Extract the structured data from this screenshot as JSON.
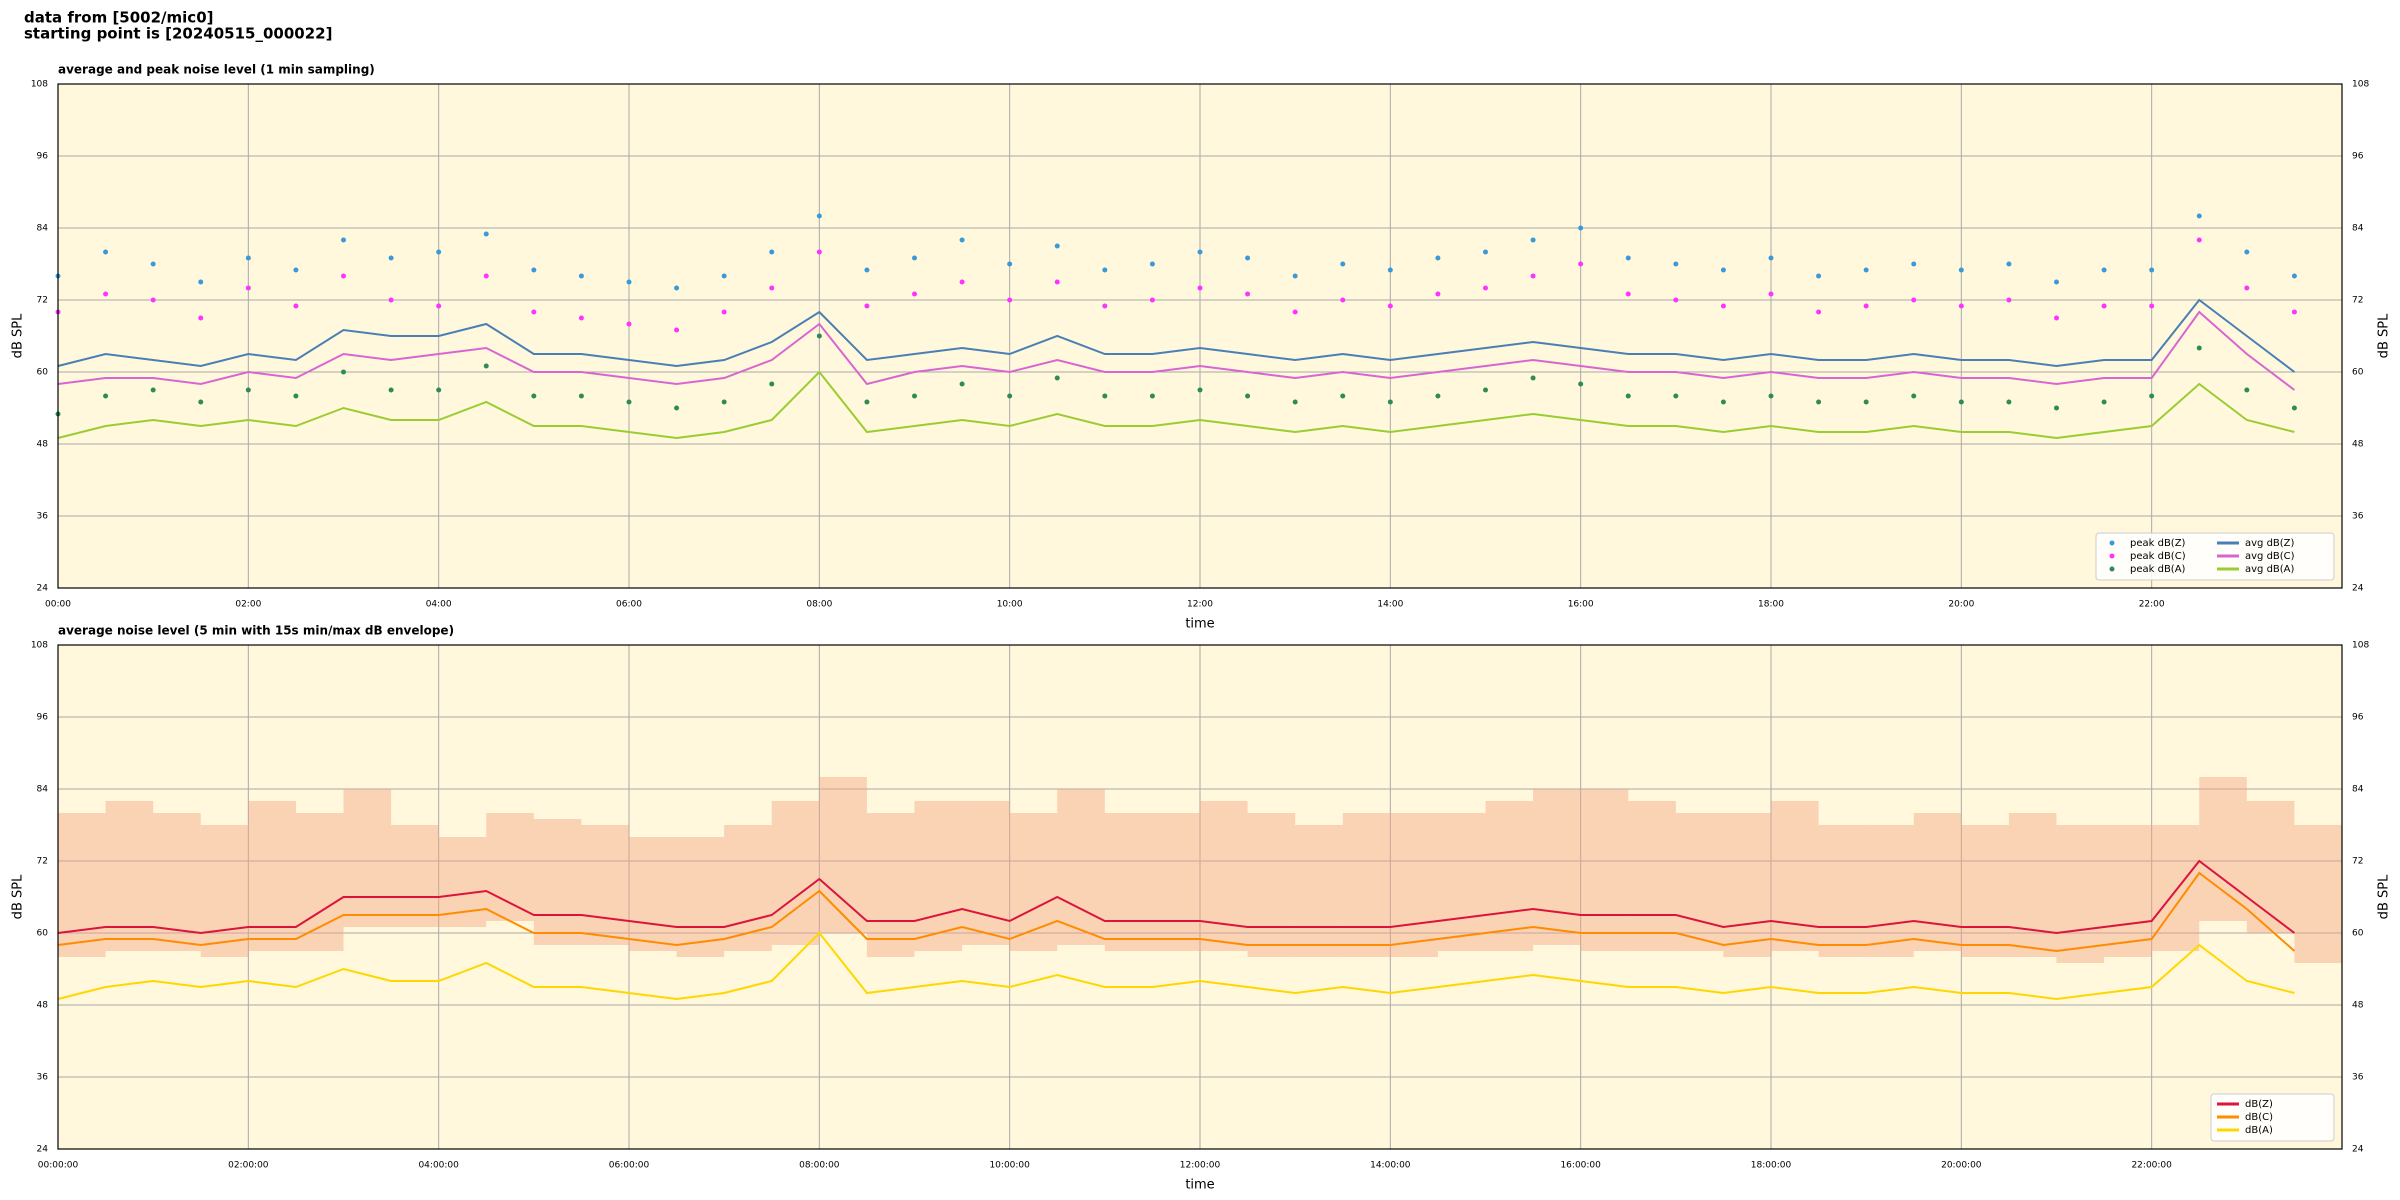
{
  "header_lines": [
    "data from [5002/mic0]",
    "starting point is [20240515_000022]"
  ],
  "chart_data": [
    {
      "type": "line",
      "title": "average and peak noise level (1 min sampling)",
      "xlabel": "time",
      "ylabel": "dB SPL",
      "xlim": [
        0,
        1440
      ],
      "ylim": [
        24,
        108
      ],
      "xticks": [
        {
          "value": 0,
          "label": "00:00"
        },
        {
          "value": 120,
          "label": "02:00"
        },
        {
          "value": 240,
          "label": "04:00"
        },
        {
          "value": 360,
          "label": "06:00"
        },
        {
          "value": 480,
          "label": "08:00"
        },
        {
          "value": 600,
          "label": "10:00"
        },
        {
          "value": 720,
          "label": "12:00"
        },
        {
          "value": 840,
          "label": "14:00"
        },
        {
          "value": 960,
          "label": "16:00"
        },
        {
          "value": 1080,
          "label": "18:00"
        },
        {
          "value": 1200,
          "label": "20:00"
        },
        {
          "value": 1320,
          "label": "22:00"
        }
      ],
      "yticks": [
        24,
        36,
        48,
        60,
        72,
        84,
        96,
        108
      ],
      "grid": true,
      "background": "#fff8dc",
      "legend": "lower right",
      "legend_columns": 2,
      "x": [
        0,
        30,
        60,
        90,
        120,
        150,
        180,
        210,
        240,
        270,
        300,
        330,
        360,
        390,
        420,
        450,
        480,
        510,
        540,
        570,
        600,
        630,
        660,
        690,
        720,
        750,
        780,
        810,
        840,
        870,
        900,
        930,
        960,
        990,
        1020,
        1050,
        1080,
        1110,
        1140,
        1170,
        1200,
        1230,
        1260,
        1290,
        1320,
        1350,
        1380,
        1410
      ],
      "series": [
        {
          "name": "peak dB(Z)",
          "mark": "dot",
          "color": "#3a9ad9",
          "values": [
            76,
            80,
            78,
            75,
            79,
            77,
            82,
            79,
            80,
            83,
            77,
            76,
            75,
            74,
            76,
            80,
            86,
            77,
            79,
            82,
            78,
            81,
            77,
            78,
            80,
            79,
            76,
            78,
            77,
            79,
            80,
            82,
            84,
            79,
            78,
            77,
            79,
            76,
            77,
            78,
            77,
            78,
            75,
            77,
            77,
            86,
            80,
            76
          ]
        },
        {
          "name": "peak dB(C)",
          "mark": "dot",
          "color": "#ff33ff",
          "values": [
            70,
            73,
            72,
            69,
            74,
            71,
            76,
            72,
            71,
            76,
            70,
            69,
            68,
            67,
            70,
            74,
            80,
            71,
            73,
            75,
            72,
            75,
            71,
            72,
            74,
            73,
            70,
            72,
            71,
            73,
            74,
            76,
            78,
            73,
            72,
            71,
            73,
            70,
            71,
            72,
            71,
            72,
            69,
            71,
            71,
            82,
            74,
            70
          ]
        },
        {
          "name": "peak dB(A)",
          "mark": "dot",
          "color": "#2e8b57",
          "values": [
            53,
            56,
            57,
            55,
            57,
            56,
            60,
            57,
            57,
            61,
            56,
            56,
            55,
            54,
            55,
            58,
            66,
            55,
            56,
            58,
            56,
            59,
            56,
            56,
            57,
            56,
            55,
            56,
            55,
            56,
            57,
            59,
            58,
            56,
            56,
            55,
            56,
            55,
            55,
            56,
            55,
            55,
            54,
            55,
            56,
            64,
            57,
            54
          ]
        },
        {
          "name": "avg dB(Z)",
          "mark": "line",
          "color": "#4a7fb5",
          "values": [
            61,
            63,
            62,
            61,
            63,
            62,
            67,
            66,
            66,
            68,
            63,
            63,
            62,
            61,
            62,
            65,
            70,
            62,
            63,
            64,
            63,
            66,
            63,
            63,
            64,
            63,
            62,
            63,
            62,
            63,
            64,
            65,
            64,
            63,
            63,
            62,
            63,
            62,
            62,
            63,
            62,
            62,
            61,
            62,
            62,
            72,
            66,
            60
          ]
        },
        {
          "name": "avg dB(C)",
          "mark": "line",
          "color": "#d866d0",
          "values": [
            58,
            59,
            59,
            58,
            60,
            59,
            63,
            62,
            63,
            64,
            60,
            60,
            59,
            58,
            59,
            62,
            68,
            58,
            60,
            61,
            60,
            62,
            60,
            60,
            61,
            60,
            59,
            60,
            59,
            60,
            61,
            62,
            61,
            60,
            60,
            59,
            60,
            59,
            59,
            60,
            59,
            59,
            58,
            59,
            59,
            70,
            63,
            57
          ]
        },
        {
          "name": "avg dB(A)",
          "mark": "line",
          "color": "#9acd32",
          "values": [
            49,
            51,
            52,
            51,
            52,
            51,
            54,
            52,
            52,
            55,
            51,
            51,
            50,
            49,
            50,
            52,
            60,
            50,
            51,
            52,
            51,
            53,
            51,
            51,
            52,
            51,
            50,
            51,
            50,
            51,
            52,
            53,
            52,
            51,
            51,
            50,
            51,
            50,
            50,
            51,
            50,
            50,
            49,
            50,
            51,
            58,
            52,
            50
          ]
        }
      ]
    },
    {
      "type": "line",
      "title": "average noise level (5 min with 15s min/max dB envelope)",
      "xlabel": "time",
      "ylabel": "dB SPL",
      "xlim": [
        0,
        1440
      ],
      "ylim": [
        24,
        108
      ],
      "xticks": [
        {
          "value": 0,
          "label": "00:00:00"
        },
        {
          "value": 120,
          "label": "02:00:00"
        },
        {
          "value": 240,
          "label": "04:00:00"
        },
        {
          "value": 360,
          "label": "06:00:00"
        },
        {
          "value": 480,
          "label": "08:00:00"
        },
        {
          "value": 600,
          "label": "10:00:00"
        },
        {
          "value": 720,
          "label": "12:00:00"
        },
        {
          "value": 840,
          "label": "14:00:00"
        },
        {
          "value": 960,
          "label": "16:00:00"
        },
        {
          "value": 1080,
          "label": "18:00:00"
        },
        {
          "value": 1200,
          "label": "20:00:00"
        },
        {
          "value": 1320,
          "label": "22:00:00"
        }
      ],
      "yticks": [
        24,
        36,
        48,
        60,
        72,
        84,
        96,
        108
      ],
      "grid": true,
      "background": "#fff8dc",
      "legend": "lower right",
      "legend_columns": 1,
      "x": [
        0,
        30,
        60,
        90,
        120,
        150,
        180,
        210,
        240,
        270,
        300,
        330,
        360,
        390,
        420,
        450,
        480,
        510,
        540,
        570,
        600,
        630,
        660,
        690,
        720,
        750,
        780,
        810,
        840,
        870,
        900,
        930,
        960,
        990,
        1020,
        1050,
        1080,
        1110,
        1140,
        1170,
        1200,
        1230,
        1260,
        1290,
        1320,
        1350,
        1380,
        1410
      ],
      "envelope": {
        "color": "#f4a582",
        "min": [
          56,
          57,
          57,
          56,
          57,
          57,
          61,
          61,
          61,
          62,
          58,
          58,
          57,
          56,
          57,
          58,
          60,
          56,
          57,
          58,
          57,
          58,
          57,
          57,
          57,
          56,
          56,
          56,
          56,
          57,
          57,
          58,
          57,
          57,
          57,
          56,
          57,
          56,
          56,
          57,
          56,
          56,
          55,
          56,
          57,
          62,
          60,
          55
        ],
        "max": [
          80,
          82,
          80,
          78,
          82,
          80,
          84,
          78,
          76,
          80,
          79,
          78,
          76,
          76,
          78,
          82,
          86,
          80,
          82,
          82,
          80,
          84,
          80,
          80,
          82,
          80,
          78,
          80,
          80,
          80,
          82,
          84,
          84,
          82,
          80,
          80,
          82,
          78,
          78,
          80,
          78,
          80,
          78,
          78,
          78,
          86,
          82,
          78
        ]
      },
      "series": [
        {
          "name": "dB(Z)",
          "mark": "line",
          "color": "#dc143c",
          "values": [
            60,
            61,
            61,
            60,
            61,
            61,
            66,
            66,
            66,
            67,
            63,
            63,
            62,
            61,
            61,
            63,
            69,
            62,
            62,
            64,
            62,
            66,
            62,
            62,
            62,
            61,
            61,
            61,
            61,
            62,
            63,
            64,
            63,
            63,
            63,
            61,
            62,
            61,
            61,
            62,
            61,
            61,
            60,
            61,
            62,
            72,
            66,
            60
          ]
        },
        {
          "name": "dB(C)",
          "mark": "line",
          "color": "#ff8c00",
          "values": [
            58,
            59,
            59,
            58,
            59,
            59,
            63,
            63,
            63,
            64,
            60,
            60,
            59,
            58,
            59,
            61,
            67,
            59,
            59,
            61,
            59,
            62,
            59,
            59,
            59,
            58,
            58,
            58,
            58,
            59,
            60,
            61,
            60,
            60,
            60,
            58,
            59,
            58,
            58,
            59,
            58,
            58,
            57,
            58,
            59,
            70,
            64,
            57
          ]
        },
        {
          "name": "dB(A)",
          "mark": "line",
          "color": "#ffd700",
          "values": [
            49,
            51,
            52,
            51,
            52,
            51,
            54,
            52,
            52,
            55,
            51,
            51,
            50,
            49,
            50,
            52,
            60,
            50,
            51,
            52,
            51,
            53,
            51,
            51,
            52,
            51,
            50,
            51,
            50,
            51,
            52,
            53,
            52,
            51,
            51,
            50,
            51,
            50,
            50,
            51,
            50,
            50,
            49,
            50,
            51,
            58,
            52,
            50
          ]
        }
      ]
    }
  ]
}
